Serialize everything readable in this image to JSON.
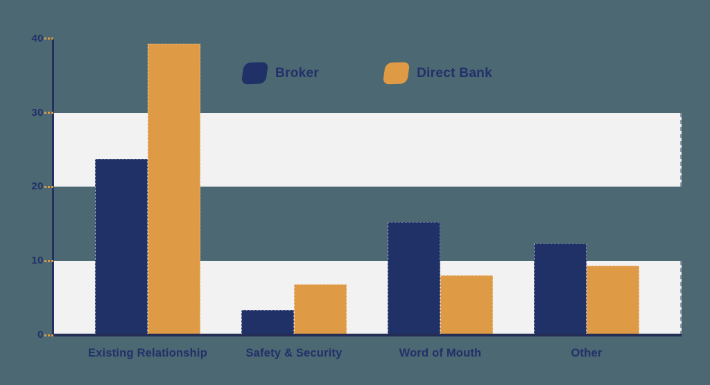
{
  "colors": {
    "background": "#4c6872",
    "band": "#f2f2f3",
    "axis": "#25305e",
    "baseline": "#242e55",
    "text": "#22306a",
    "tick_mark": "#dd9a45"
  },
  "legend": {
    "items": [
      "Broker",
      "Direct Bank"
    ]
  },
  "chart_data": {
    "type": "bar",
    "title": "",
    "xlabel": "",
    "ylabel": "",
    "categories": [
      "Existing Relationship",
      "Safety & Security",
      "Word of Mouth",
      "Other"
    ],
    "series": [
      {
        "name": "Broker",
        "color": "#203167",
        "values": [
          23.8,
          3.4,
          15.3,
          12.4
        ]
      },
      {
        "name": "Direct Bank",
        "color": "#de9a44",
        "values": [
          39.3,
          6.8,
          8.1,
          9.4
        ]
      }
    ],
    "ylim": [
      0,
      40
    ],
    "yticks": [
      0,
      10,
      20,
      30,
      40
    ],
    "background_bands": [
      [
        0,
        10
      ],
      [
        20,
        30
      ]
    ],
    "grid": false,
    "legend_position": "top-center"
  }
}
